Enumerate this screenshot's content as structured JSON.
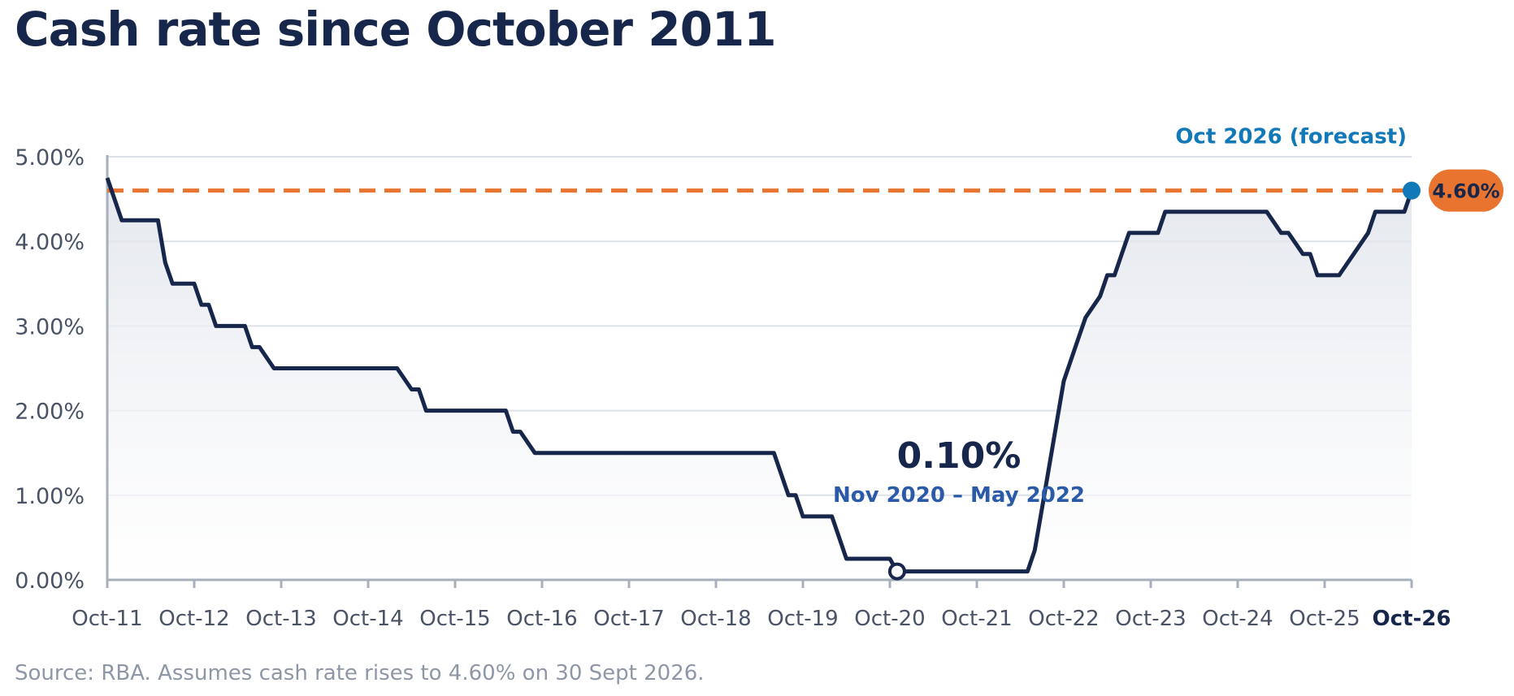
{
  "title": "Cash rate since October 2011",
  "source": "Source: RBA. Assumes cash rate rises to 4.60% on 30 Sept 2026.",
  "colors": {
    "line": "#17264b",
    "forecast_line": "#e8742f",
    "forecast_dot": "#1279b8",
    "forecast_label": "#1279b8",
    "low_annotation_sub": "#2b5aa8",
    "grid": "#dde1e8",
    "axis": "#a7afbc",
    "tick_label": "#4a5366"
  },
  "chart_data": {
    "type": "area",
    "title": "Cash rate since October 2011",
    "xlabel": "",
    "ylabel": "",
    "x_range": [
      "2011-10",
      "2026-10"
    ],
    "ylim": [
      0,
      5
    ],
    "y_ticks": [
      0,
      1,
      2,
      3,
      4,
      5
    ],
    "y_tick_labels": [
      "0.00%",
      "1.00%",
      "2.00%",
      "3.00%",
      "4.00%",
      "5.00%"
    ],
    "x_tick_labels": [
      "Oct-11",
      "Oct-12",
      "Oct-13",
      "Oct-14",
      "Oct-15",
      "Oct-16",
      "Oct-17",
      "Oct-18",
      "Oct-19",
      "Oct-20",
      "Oct-21",
      "Oct-22",
      "Oct-23",
      "Oct-24",
      "Oct-25",
      "Oct-26"
    ],
    "grid": true,
    "series": [
      {
        "points": [
          [
            "2011-10",
            4.75
          ],
          [
            "2011-11",
            4.5
          ],
          [
            "2011-12",
            4.25
          ],
          [
            "2012-05",
            4.25
          ],
          [
            "2012-06",
            3.75
          ],
          [
            "2012-07",
            3.5
          ],
          [
            "2012-10",
            3.5
          ],
          [
            "2012-11",
            3.25
          ],
          [
            "2012-12",
            3.25
          ],
          [
            "2013-01",
            3.0
          ],
          [
            "2013-05",
            3.0
          ],
          [
            "2013-06",
            2.75
          ],
          [
            "2013-07",
            2.75
          ],
          [
            "2013-09",
            2.5
          ],
          [
            "2015-02",
            2.5
          ],
          [
            "2015-04",
            2.25
          ],
          [
            "2015-05",
            2.25
          ],
          [
            "2015-06",
            2.0
          ],
          [
            "2016-05",
            2.0
          ],
          [
            "2016-06",
            1.75
          ],
          [
            "2016-07",
            1.75
          ],
          [
            "2016-09",
            1.5
          ],
          [
            "2019-06",
            1.5
          ],
          [
            "2019-08",
            1.0
          ],
          [
            "2019-09",
            1.0
          ],
          [
            "2019-10",
            0.75
          ],
          [
            "2020-02",
            0.75
          ],
          [
            "2020-03",
            0.5
          ],
          [
            "2020-04",
            0.25
          ],
          [
            "2020-10",
            0.25
          ],
          [
            "2020-11",
            0.1
          ],
          [
            "2022-05",
            0.1
          ],
          [
            "2022-06",
            0.35
          ],
          [
            "2022-07",
            0.85
          ],
          [
            "2022-08",
            1.35
          ],
          [
            "2022-09",
            1.85
          ],
          [
            "2022-10",
            2.35
          ],
          [
            "2022-11",
            2.6
          ],
          [
            "2022-12",
            2.85
          ],
          [
            "2023-01",
            3.1
          ],
          [
            "2023-03",
            3.35
          ],
          [
            "2023-04",
            3.6
          ],
          [
            "2023-05",
            3.6
          ],
          [
            "2023-06",
            3.85
          ],
          [
            "2023-07",
            4.1
          ],
          [
            "2023-11",
            4.1
          ],
          [
            "2023-12",
            4.35
          ],
          [
            "2025-02",
            4.35
          ],
          [
            "2025-04",
            4.1
          ],
          [
            "2025-05",
            4.1
          ],
          [
            "2025-07",
            3.85
          ],
          [
            "2025-08",
            3.85
          ],
          [
            "2025-09",
            3.6
          ],
          [
            "2025-12",
            3.6
          ],
          [
            "2026-02",
            3.85
          ],
          [
            "2026-04",
            4.1
          ],
          [
            "2026-05",
            4.35
          ],
          [
            "2026-09",
            4.35
          ],
          [
            "2026-10",
            4.6
          ]
        ]
      }
    ],
    "reference_line": {
      "value": 4.6,
      "style": "dashed"
    },
    "forecast_point": {
      "x": "2026-10",
      "y": 4.6,
      "label": "Oct 2026 (forecast)",
      "value_label": "4.60%"
    },
    "low_point": {
      "x": "2020-11",
      "y": 0.1,
      "value_label": "0.10%",
      "period_label": "Nov 2020 – May 2022"
    },
    "highlighted_x_tick": "Oct-26"
  }
}
